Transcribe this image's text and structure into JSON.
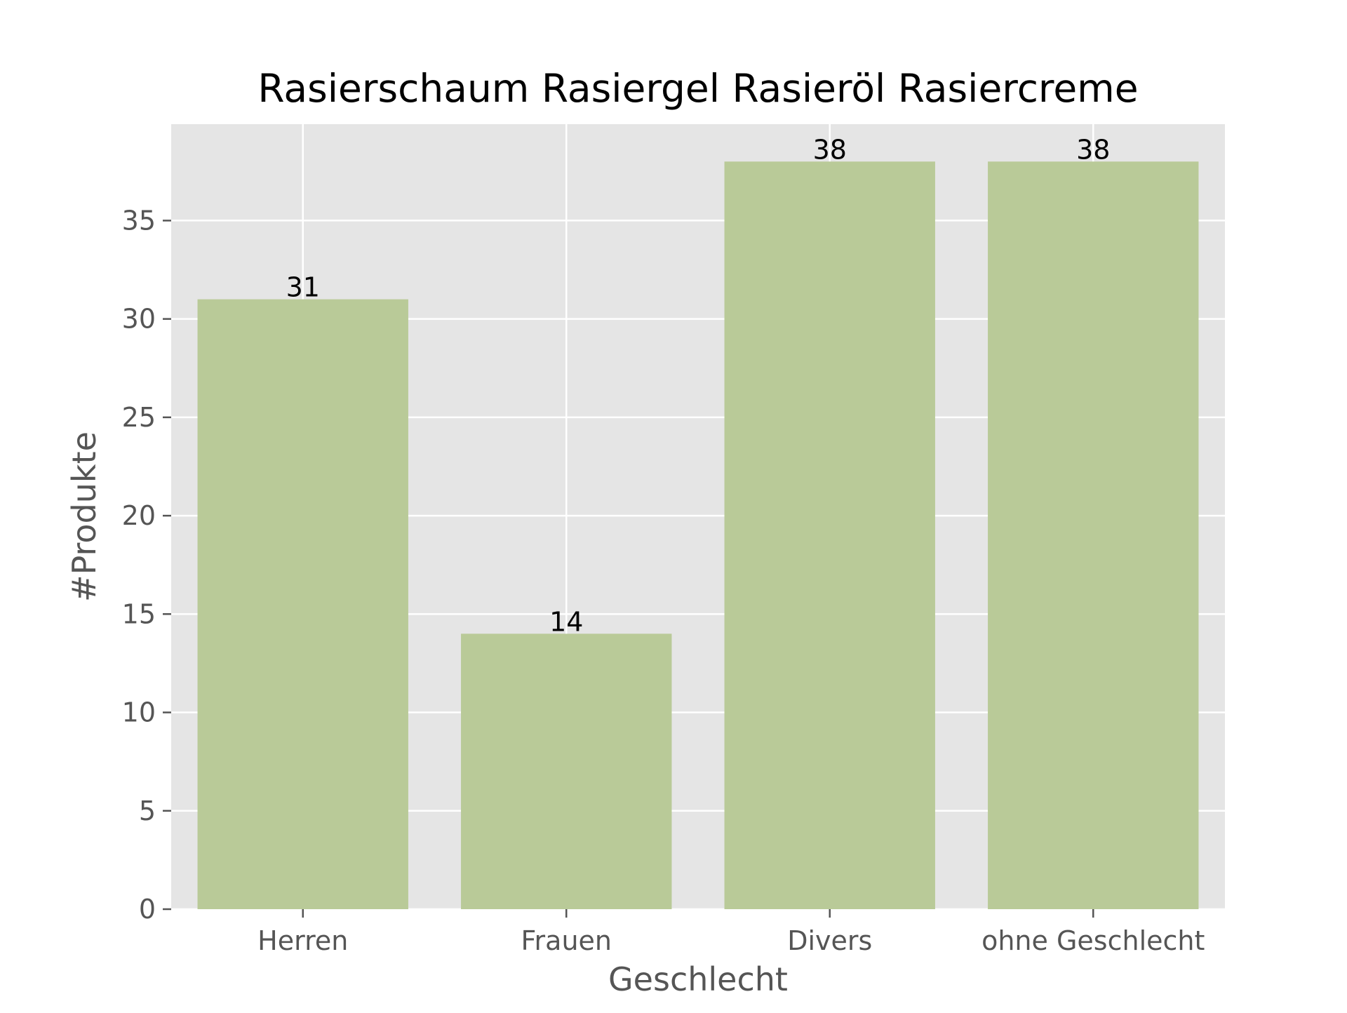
{
  "chart_data": {
    "type": "bar",
    "title": "Rasierschaum Rasiergel Rasieröl Rasiercreme",
    "xlabel": "Geschlecht",
    "ylabel": "#Produkte",
    "categories": [
      "Herren",
      "Frauen",
      "Divers",
      "ohne Geschlecht"
    ],
    "values": [
      31,
      14,
      38,
      38
    ],
    "data_labels": [
      "31",
      "14",
      "38",
      "38"
    ],
    "yticks": [
      0,
      5,
      10,
      15,
      20,
      25,
      30,
      35
    ],
    "ytick_labels": [
      "0",
      "5",
      "10",
      "15",
      "20",
      "25",
      "30",
      "35"
    ],
    "ylim": [
      0,
      39.9
    ],
    "grid": true,
    "legend": "none",
    "colors": {
      "bar": "#b9ca98",
      "plot_background": "#e5e5e5",
      "grid": "#ffffff",
      "tick_label": "#555555",
      "axis_label": "#555555",
      "title": "#000000",
      "data_label": "#000000"
    }
  }
}
